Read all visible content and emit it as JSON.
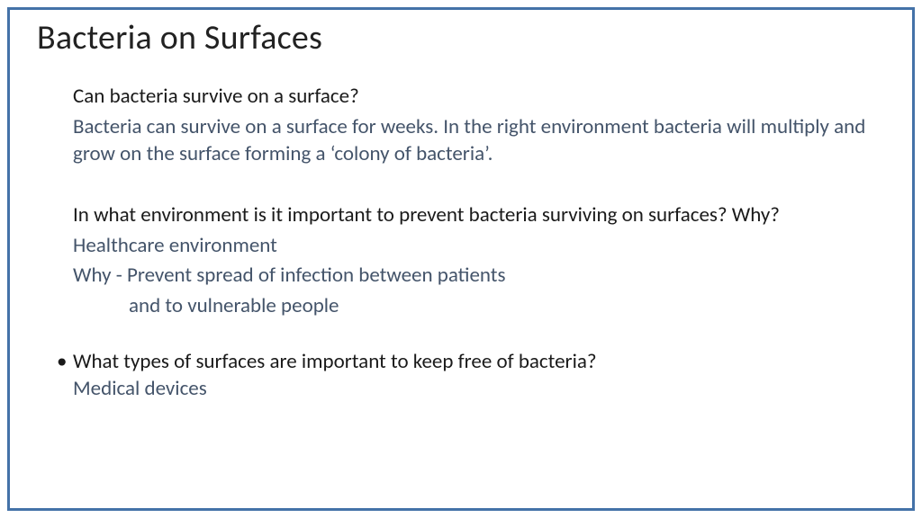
{
  "slide": {
    "title": "Bacteria on Surfaces",
    "border_color": "#4472a8",
    "background_color": "#ffffff",
    "title_color": "#222222",
    "question_color": "#1a1a1a",
    "answer_color": "#44546a",
    "title_fontsize": 38,
    "body_fontsize": 23,
    "q1": "Can bacteria survive on a surface?",
    "a1": "Bacteria can survive on a surface for weeks. In the right environment bacteria will multiply and grow on the surface forming a ‘colony of bacteria’.",
    "q2": "In what environment is it important to prevent bacteria surviving on surfaces? Why?",
    "a2_line1": "Healthcare environment",
    "a2_line2": "Why - Prevent spread of infection between patients",
    "a2_line3": "and to vulnerable people",
    "q3": "What types of surfaces are important to keep free of bacteria?",
    "a3": "Medical devices"
  }
}
